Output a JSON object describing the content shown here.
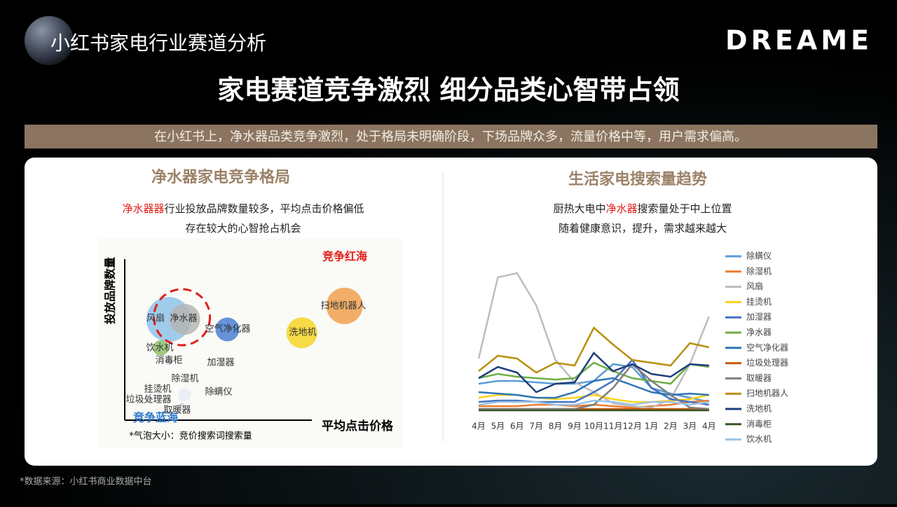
{
  "header": {
    "title": "小红书家电行业赛道分析",
    "logo": "DREAME"
  },
  "headline": "家电赛道竞争激烈  细分品类心智带占领",
  "subtitle": "在小红书上，净水器品类竞争激烈，处于格局未明确阶段，下场品牌众多，流量价格中等，用户需求偏高。",
  "footnote": "*数据来源：小红书商业数据中台",
  "chart_data": [
    {
      "type": "bubble",
      "title": "净水器家电竞争格局",
      "description": [
        [
          {
            "text": "净水器器",
            "color": "#e0201b"
          },
          {
            "text": "行业投放品牌数量较多，平均点击价格偏低"
          }
        ],
        [
          {
            "text": "存在较大的心智抢占机会"
          }
        ]
      ],
      "xlabel": "平均点击价格",
      "ylabel": "投放品牌数量",
      "annotations": [
        {
          "text": "竞争红海",
          "color": "#e0201b"
        },
        {
          "text": "竞争蓝海",
          "color": "#2e7bd0"
        }
      ],
      "note": "*气泡大小：竞价搜索词搜索量",
      "xlim": [
        0,
        100
      ],
      "ylim": [
        0,
        100
      ],
      "points": [
        {
          "name": "风扇",
          "x": 16,
          "y": 60,
          "size": 32,
          "color": "#8fc3ea"
        },
        {
          "name": "净水器",
          "x": 22,
          "y": 60,
          "size": 22,
          "color": "#b5b5b5"
        },
        {
          "name": "空气净化器",
          "x": 38,
          "y": 54,
          "size": 17,
          "color": "#4a7fd4"
        },
        {
          "name": "扫地机器人",
          "x": 82,
          "y": 68,
          "size": 26,
          "color": "#f0a050"
        },
        {
          "name": "洗地机",
          "x": 66,
          "y": 52,
          "size": 22,
          "color": "#f5d327"
        },
        {
          "name": "饮水机",
          "x": 13,
          "y": 43,
          "size": 11,
          "color": "#8dc06a"
        },
        {
          "name": "消毒柜",
          "x": 16,
          "y": 35,
          "size": 5,
          "color": "#c9d3dd"
        },
        {
          "name": "加湿器",
          "x": 36,
          "y": 35,
          "size": 3,
          "color": "#c9d3dd"
        },
        {
          "name": "除湿机",
          "x": 22,
          "y": 15,
          "size": 9,
          "color": "#e6ecf3"
        },
        {
          "name": "除螨仪",
          "x": 33,
          "y": 17,
          "size": 3,
          "color": "#c9d3dd"
        },
        {
          "name": "挂烫机",
          "x": 12,
          "y": 17,
          "size": 3,
          "color": "#c9d3dd"
        },
        {
          "name": "垃圾处理器",
          "x": 9,
          "y": 12,
          "size": 3,
          "color": "#c9d3dd"
        },
        {
          "name": "取暖器",
          "x": 21,
          "y": 9,
          "size": 3,
          "color": "#c9d3dd"
        }
      ]
    },
    {
      "type": "line",
      "title": "生活家电搜索量趋势",
      "description": [
        [
          {
            "text": "厨热大电中"
          },
          {
            "text": "净水器",
            "color": "#e0201b"
          },
          {
            "text": "搜索量处于中上位置"
          }
        ],
        [
          {
            "text": "随着健康意识，提升，需求越来越大"
          }
        ]
      ],
      "categories": [
        "4月",
        "5月",
        "6月",
        "7月",
        "8月",
        "9月",
        "10月",
        "11月",
        "12月",
        "1月",
        "2月",
        "3月",
        "4月"
      ],
      "ylim": [
        0,
        105
      ],
      "legend": "right",
      "series": [
        {
          "name": "除螨仪",
          "color": "#5b9bd5",
          "values": [
            21,
            23,
            23,
            22,
            21,
            21,
            23,
            35,
            33,
            18,
            14,
            11,
            8
          ]
        },
        {
          "name": "除湿机",
          "color": "#ed7d31",
          "values": [
            5,
            5,
            5,
            6,
            6,
            5,
            6,
            5,
            4,
            5,
            6,
            8,
            9
          ]
        },
        {
          "name": "风扇",
          "color": "#bdbdbd",
          "values": [
            39,
            97,
            100,
            77,
            38,
            22,
            15,
            7,
            5,
            4,
            10,
            35,
            69
          ]
        },
        {
          "name": "挂烫机",
          "color": "#ffd21f",
          "values": [
            11,
            13,
            13,
            11,
            10,
            11,
            13,
            10,
            8,
            8,
            9,
            10,
            13
          ]
        },
        {
          "name": "加湿器",
          "color": "#4472c4",
          "values": [
            8,
            9,
            9,
            8,
            8,
            8,
            15,
            23,
            38,
            18,
            10,
            8,
            6
          ]
        },
        {
          "name": "净水器",
          "color": "#70ad47",
          "values": [
            25,
            28,
            26,
            25,
            24,
            25,
            36,
            30,
            25,
            23,
            21,
            35,
            33
          ]
        },
        {
          "name": "空气净化器",
          "color": "#2e75b6",
          "values": [
            15,
            14,
            13,
            11,
            11,
            15,
            23,
            25,
            20,
            15,
            13,
            14,
            13
          ]
        },
        {
          "name": "垃圾处理器",
          "color": "#c55a11",
          "values": [
            3,
            3,
            3,
            3,
            3,
            3,
            3,
            3,
            3,
            3,
            3,
            3,
            3
          ]
        },
        {
          "name": "取暖器",
          "color": "#7f7f7f",
          "values": [
            3,
            3,
            3,
            3,
            3,
            3,
            6,
            18,
            35,
            23,
            13,
            4,
            3
          ]
        },
        {
          "name": "扫地机器人",
          "color": "#b8900b",
          "values": [
            30,
            41,
            39,
            29,
            36,
            34,
            61,
            49,
            38,
            36,
            34,
            50,
            47
          ]
        },
        {
          "name": "洗地机",
          "color": "#1f3f7a",
          "values": [
            25,
            33,
            29,
            15,
            21,
            22,
            43,
            30,
            35,
            28,
            26,
            35,
            34
          ]
        },
        {
          "name": "消毒柜",
          "color": "#375623",
          "values": [
            2,
            2,
            2,
            2,
            2,
            2,
            2,
            2,
            2,
            2,
            2,
            2,
            2
          ]
        },
        {
          "name": "饮水机",
          "color": "#9dc3e6",
          "values": [
            6,
            8,
            8,
            8,
            6,
            6,
            9,
            8,
            6,
            8,
            8,
            6,
            8
          ]
        }
      ]
    }
  ]
}
